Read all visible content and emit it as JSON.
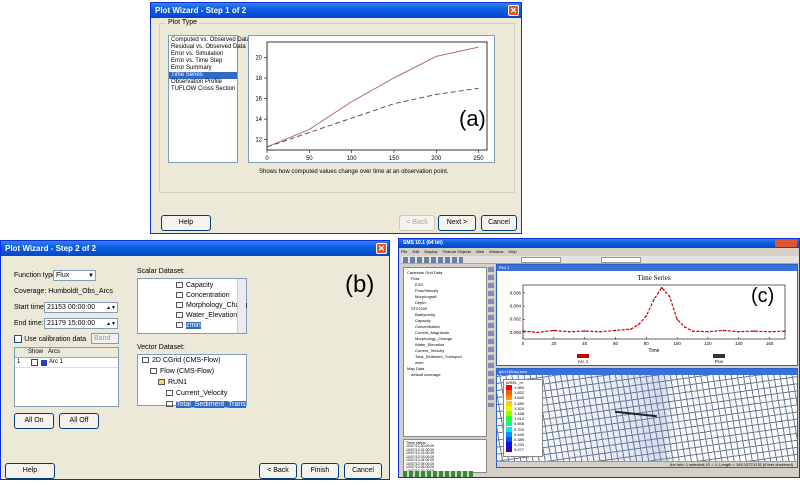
{
  "panel_a": {
    "title": "Plot Wizard - Step 1 of 2",
    "group_label": "Plot Type",
    "plot_types": [
      "Computed vs. Observed Data",
      "Residual vs. Observed Data",
      "Error vs. Simulation",
      "Error vs. Time Step",
      "Error Summary",
      "Time Series",
      "Observation Profile",
      "TUFLOW Cross Section"
    ],
    "selected_index": 5,
    "description": "Shows how computed values change over time at an observation point.",
    "tag": "(a)",
    "buttons": {
      "help": "Help",
      "back": "< Back",
      "next": "Next >",
      "cancel": "Cancel"
    },
    "chart_data": {
      "type": "line",
      "x": [
        0,
        50,
        100,
        150,
        200,
        250
      ],
      "xticks": [
        "0",
        "50",
        "100",
        "150",
        "200",
        "250"
      ],
      "yticks": [
        "12",
        "14",
        "16",
        "18",
        "20"
      ],
      "xlim": [
        0,
        260
      ],
      "ylim": [
        11,
        21.5
      ],
      "series": [
        {
          "values": [
            11.3,
            13,
            15.7,
            18,
            20.1,
            21
          ],
          "color": "#b07070",
          "style": "solid"
        },
        {
          "values": [
            11.3,
            12.7,
            14.1,
            15.5,
            16.4,
            17
          ],
          "color": "#555555",
          "style": "dashed"
        }
      ]
    }
  },
  "panel_b": {
    "title": "Plot Wizard - Step 2 of 2",
    "tag": "(b)",
    "function_type_label": "Function type:",
    "function_type_value": "Flux",
    "coverage_label": "Coverage: Humboldt_Obs_Arcs",
    "start_label": "Start time:",
    "start_value": "21153 00:00:00",
    "end_label": "End time:",
    "end_value": "21179 15:00:00",
    "calibration_label": "Use calibration data",
    "calibration_dropdown": "Band",
    "table_header_show": "Show",
    "table_header_arcs": "Arcs",
    "table_row_num": "1",
    "table_row_arc": "Arc 1",
    "all_on": "All On",
    "all_off": "All Off",
    "scalar_label": "Scalar Dataset:",
    "scalar_items": [
      "Capacity",
      "Concentration",
      "Morphology_Chang",
      "Water_Elevation",
      "zmin"
    ],
    "vector_label": "Vector Dataset:",
    "vector_tree": [
      "2D CGrid (CMS-Flow)",
      "Flow (CMS-Flow)",
      "RUN1",
      "Current_Velocity",
      "Total_Sediment_Trans"
    ],
    "buttons": {
      "help": "Help",
      "back": "< Back",
      "finish": "Finish",
      "cancel": "Cancel"
    }
  },
  "panel_c": {
    "title": "SMS 10.1 (64 bit)",
    "menu": [
      "File",
      "Edit",
      "Display",
      "Feature Objects",
      "Web",
      "Window",
      "Help"
    ],
    "tag": "(c)",
    "tree_items": [
      "Cartesian Grid Data",
      "Flow",
      "EXD",
      "Flow/Velocity",
      "Morphograft",
      "Depth",
      "ST07009",
      "Bathymetry",
      "Capacity",
      "Concentration",
      "Current_Magnitude",
      "Morphology_Change",
      "Water_Elevation",
      "Current_Velocity",
      "Total_Sediment_Transport",
      "zmin",
      "Map Data",
      "default coverage"
    ],
    "time_steps_label": "Time steps:",
    "time_steps": [
      "10/07/13 00:00:00",
      "10/07/13 01:00:00",
      "10/07/13 02:00:00",
      "10/07/13 03:00:00",
      "10/07/13 04:00:00",
      "10/07/13 05:00:00",
      "10/07/13 06:00:00",
      "10/07/13 07:00:00"
    ],
    "plot_window_title": "Plot 1",
    "grid_window_title": "grid:1(flow).sms",
    "legend_items": [
      "Arc 1",
      "Flux"
    ],
    "legend_colors": [
      "#cc0000",
      "#333333"
    ],
    "status_text": "Arc Info: 1 selected; ID = 1; Length = 145.10774176 (6 feet observed)",
    "contour_title": "WSEL_m",
    "contour_values": [
      "1.984",
      "1.832",
      "1.640",
      "1.480",
      "1.324",
      "1.168",
      "1.012",
      "0.856",
      "0.700",
      "0.545",
      "0.389",
      "0.233",
      "0.077"
    ],
    "contour_colors": [
      "#ff0000",
      "#ff5a00",
      "#ff9a00",
      "#ffd000",
      "#e8ff00",
      "#96ff00",
      "#28ff28",
      "#00ff96",
      "#00e8ff",
      "#0096ff",
      "#0050ff",
      "#1010e0",
      "#3000a0"
    ],
    "chart_data": {
      "type": "line",
      "title": "Time Series",
      "xlabel": "Time",
      "xticks": [
        "0",
        "20",
        "40",
        "60",
        "80",
        "100",
        "120",
        "140",
        "160"
      ],
      "yticks": [
        "0.000",
        "0.002",
        "0.004",
        "0.006"
      ],
      "xlim": [
        0,
        170
      ],
      "ylim": [
        -0.001,
        0.0072
      ],
      "series": [
        {
          "x": [
            0,
            10,
            20,
            30,
            40,
            50,
            60,
            70,
            75,
            80,
            85,
            90,
            95,
            100,
            105,
            110,
            120,
            130,
            140,
            150,
            160,
            170
          ],
          "values": [
            0.0002,
            0.0,
            0.0003,
            0.0001,
            0.0002,
            0.0001,
            0.0003,
            0.0005,
            0.0012,
            0.0025,
            0.005,
            0.0068,
            0.0055,
            0.002,
            0.0008,
            0.0002,
            0.0001,
            0.0003,
            0.0001,
            0.0002,
            0.0001,
            0.0002
          ],
          "color": "#cc0000"
        }
      ]
    }
  }
}
